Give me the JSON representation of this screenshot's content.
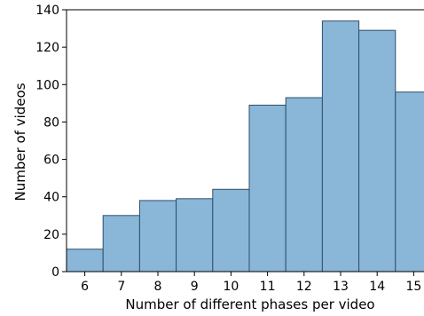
{
  "chart_data": {
    "type": "bar",
    "categories": [
      "6",
      "7",
      "8",
      "9",
      "10",
      "11",
      "12",
      "13",
      "14",
      "15"
    ],
    "values": [
      12,
      30,
      38,
      39,
      44,
      89,
      93,
      134,
      129,
      96
    ],
    "xlabel": "Number of different phases per video",
    "ylabel": "Number of videos",
    "ylim": [
      0,
      140
    ],
    "yticks": [
      "0",
      "20",
      "40",
      "60",
      "80",
      "100",
      "120",
      "140"
    ],
    "grid": false,
    "colors": {
      "bar_fill": "#8ab6d8",
      "bar_edge": "#2f4f6a"
    }
  }
}
